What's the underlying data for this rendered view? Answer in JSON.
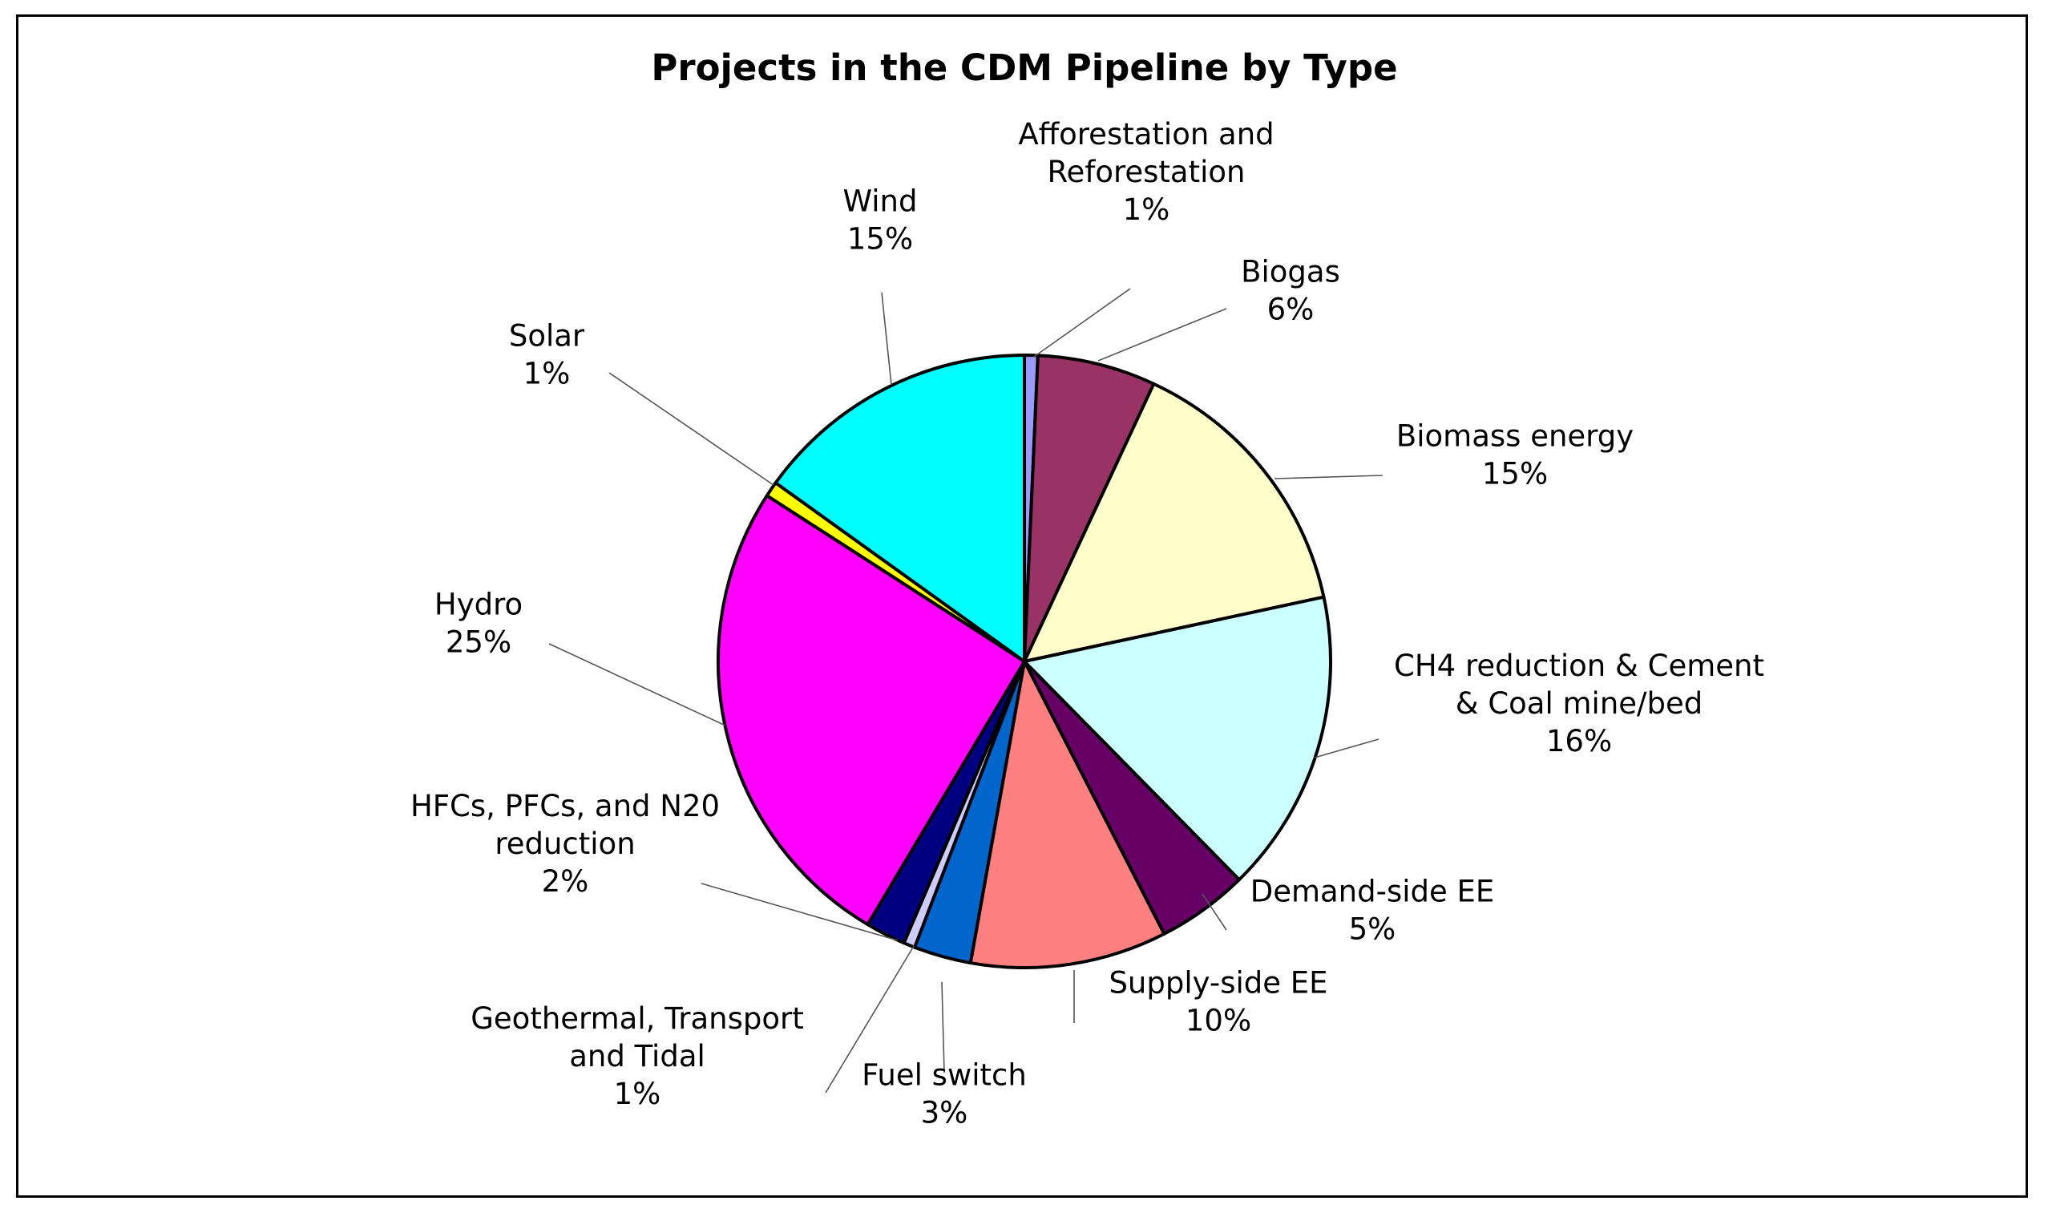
{
  "chart_data": {
    "type": "pie",
    "title": "Projects in the CDM Pipeline by Type",
    "slices": [
      {
        "label": [
          "Afforestation and",
          "Reforestation"
        ],
        "percent_label": "1%",
        "value": 0.7,
        "color": "#9999ff"
      },
      {
        "label": [
          "Biogas"
        ],
        "percent_label": "6%",
        "value": 6.2,
        "color": "#993366"
      },
      {
        "label": [
          "Biomass energy"
        ],
        "percent_label": "15%",
        "value": 14.6,
        "color": "#ffffcc"
      },
      {
        "label": [
          "CH4 reduction & Cement",
          "& Coal mine/bed"
        ],
        "percent_label": "16%",
        "value": 15.9,
        "color": "#ccffff"
      },
      {
        "label": [
          "Demand-side EE"
        ],
        "percent_label": "5%",
        "value": 4.8,
        "color": "#660066"
      },
      {
        "label": [
          "Supply-side EE"
        ],
        "percent_label": "10%",
        "value": 10.3,
        "color": "#ff8080"
      },
      {
        "label": [
          "Fuel switch"
        ],
        "percent_label": "3%",
        "value": 3.0,
        "color": "#0066cc"
      },
      {
        "label": [
          "Geothermal, Transport",
          "and Tidal"
        ],
        "percent_label": "1%",
        "value": 0.6,
        "color": "#ccccff"
      },
      {
        "label": [
          "HFCs, PFCs, and N20",
          "reduction"
        ],
        "percent_label": "2%",
        "value": 2.1,
        "color": "#000080"
      },
      {
        "label": [
          "Hydro"
        ],
        "percent_label": "25%",
        "value": 25.4,
        "color": "#ff00ff"
      },
      {
        "label": [
          "Solar"
        ],
        "percent_label": "1%",
        "value": 0.8,
        "color": "#ffff00"
      },
      {
        "label": [
          "Wind"
        ],
        "percent_label": "15%",
        "value": 15.0,
        "color": "#00ffff"
      }
    ],
    "legend": "none",
    "label_style": "outside labels with leader lines"
  }
}
